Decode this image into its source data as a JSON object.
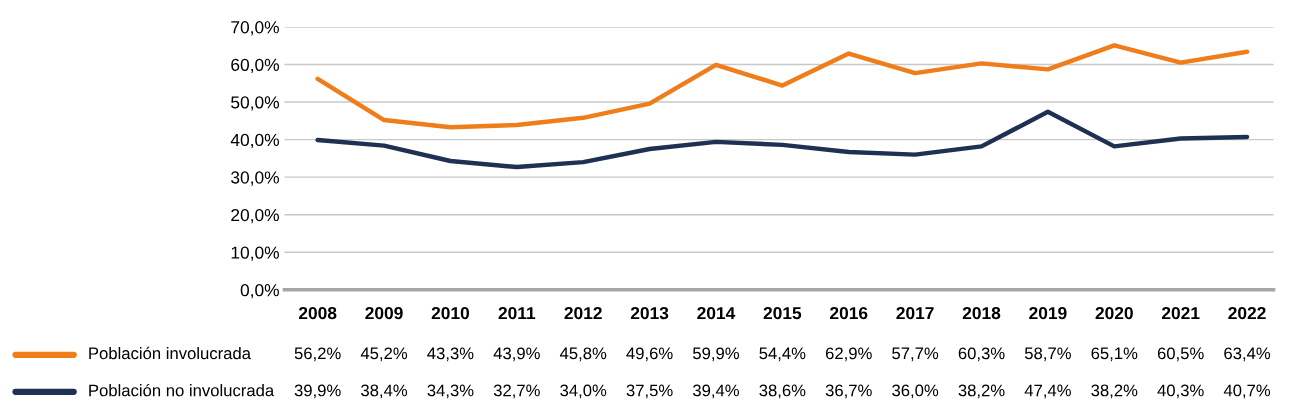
{
  "chart_data": {
    "type": "line",
    "categories": [
      "2008",
      "2009",
      "2010",
      "2011",
      "2012",
      "2013",
      "2014",
      "2015",
      "2016",
      "2017",
      "2018",
      "2019",
      "2020",
      "2021",
      "2022"
    ],
    "series": [
      {
        "name": "Población involucrada",
        "color": "#ef7d1a",
        "values": [
          56.2,
          45.2,
          43.3,
          43.9,
          45.8,
          49.6,
          59.9,
          54.4,
          62.9,
          57.7,
          60.3,
          58.7,
          65.1,
          60.5,
          63.4
        ],
        "value_labels": [
          "56,2%",
          "45,2%",
          "43,3%",
          "43,9%",
          "45,8%",
          "49,6%",
          "59,9%",
          "54,4%",
          "62,9%",
          "57,7%",
          "60,3%",
          "58,7%",
          "65,1%",
          "60,5%",
          "63,4%"
        ]
      },
      {
        "name": "Población no involucrada",
        "color": "#1f3152",
        "values": [
          39.9,
          38.4,
          34.3,
          32.7,
          34.0,
          37.5,
          39.4,
          38.6,
          36.7,
          36.0,
          38.2,
          47.4,
          38.2,
          40.3,
          40.7
        ],
        "value_labels": [
          "39,9%",
          "38,4%",
          "34,3%",
          "32,7%",
          "34,0%",
          "37,5%",
          "39,4%",
          "38,6%",
          "36,7%",
          "36,0%",
          "38,2%",
          "47,4%",
          "38,2%",
          "40,3%",
          "40,7%"
        ]
      }
    ],
    "ylim": [
      0,
      70
    ],
    "yticks": [
      {
        "value": 0,
        "label": "0,0%"
      },
      {
        "value": 10,
        "label": "10,0%"
      },
      {
        "value": 20,
        "label": "20,0%"
      },
      {
        "value": 30,
        "label": "30,0%"
      },
      {
        "value": 40,
        "label": "40,0%"
      },
      {
        "value": 50,
        "label": "50,0%"
      },
      {
        "value": 60,
        "label": "60,0%"
      },
      {
        "value": 70,
        "label": "70,0%"
      }
    ],
    "grid": "y",
    "legend": "bottom left",
    "marker": "none",
    "line_style": "solid"
  }
}
